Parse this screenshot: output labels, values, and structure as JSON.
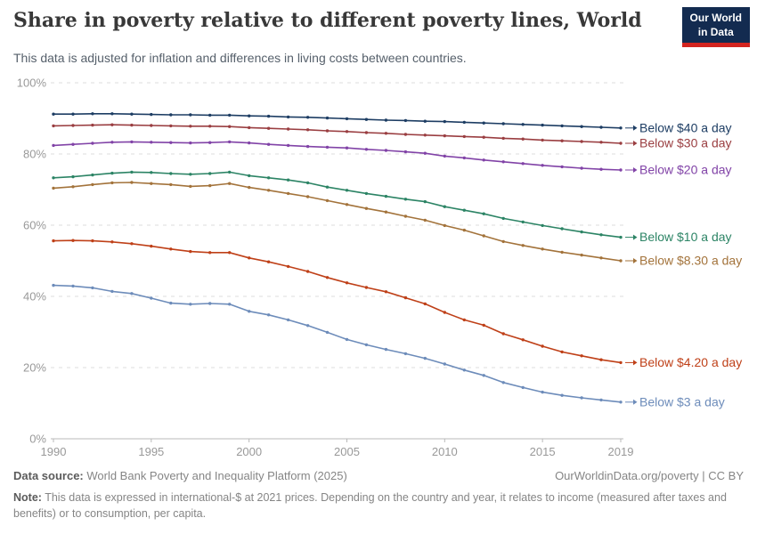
{
  "header": {
    "title": "Share in poverty relative to different poverty lines, World",
    "subtitle": "This data is adjusted for inflation and differences in living costs between countries.",
    "logo": {
      "line1": "Our World",
      "line2": "in Data",
      "bg_color": "#132b50",
      "accent_color": "#d3241f"
    }
  },
  "chart_data": {
    "type": "line",
    "title": "Share in poverty relative to different poverty lines, World",
    "xlabel": "",
    "ylabel": "",
    "grid": "horizontal-dashed",
    "legend_position": "right-end-labels",
    "ylim": [
      0,
      100
    ],
    "x": [
      1990,
      1991,
      1992,
      1993,
      1994,
      1995,
      1996,
      1997,
      1998,
      1999,
      2000,
      2001,
      2002,
      2003,
      2004,
      2005,
      2006,
      2007,
      2008,
      2009,
      2010,
      2011,
      2012,
      2013,
      2014,
      2015,
      2016,
      2017,
      2018,
      2019
    ],
    "x_tick_labels": [
      "1990",
      "1995",
      "2000",
      "2005",
      "2010",
      "2015",
      "2019"
    ],
    "y_tick_labels": [
      "0%",
      "20%",
      "40%",
      "60%",
      "80%",
      "100%"
    ],
    "axis_color": "#b9b9b9",
    "gridline_color": "#dedede",
    "tick_label_color": "#999999",
    "series": [
      {
        "name": "Below $40 a day",
        "color": "#1d3d63",
        "values": [
          91.2,
          91.2,
          91.3,
          91.3,
          91.2,
          91.1,
          91.0,
          91.0,
          90.9,
          90.9,
          90.7,
          90.6,
          90.4,
          90.3,
          90.1,
          89.9,
          89.7,
          89.5,
          89.4,
          89.2,
          89.1,
          88.9,
          88.7,
          88.5,
          88.3,
          88.1,
          87.9,
          87.7,
          87.5,
          87.3
        ]
      },
      {
        "name": "Below $30 a day",
        "color": "#9a3e41",
        "values": [
          87.9,
          88.0,
          88.1,
          88.2,
          88.1,
          88.0,
          87.9,
          87.8,
          87.8,
          87.7,
          87.4,
          87.2,
          87.0,
          86.8,
          86.5,
          86.3,
          86.0,
          85.8,
          85.5,
          85.3,
          85.1,
          84.9,
          84.7,
          84.4,
          84.2,
          83.9,
          83.7,
          83.5,
          83.3,
          83.0
        ]
      },
      {
        "name": "Below $20 a day",
        "color": "#8143a7",
        "values": [
          82.4,
          82.7,
          83.0,
          83.3,
          83.4,
          83.3,
          83.2,
          83.1,
          83.2,
          83.4,
          83.1,
          82.7,
          82.4,
          82.1,
          81.9,
          81.7,
          81.3,
          81.0,
          80.6,
          80.2,
          79.4,
          78.9,
          78.3,
          77.8,
          77.3,
          76.8,
          76.4,
          76.0,
          75.7,
          75.5
        ]
      },
      {
        "name": "Below $10 a day",
        "color": "#2c8465",
        "values": [
          73.3,
          73.6,
          74.1,
          74.6,
          74.9,
          74.8,
          74.5,
          74.3,
          74.5,
          74.9,
          73.9,
          73.3,
          72.7,
          71.9,
          70.7,
          69.8,
          68.9,
          68.1,
          67.3,
          66.6,
          65.2,
          64.2,
          63.2,
          61.9,
          60.9,
          59.9,
          59.0,
          58.1,
          57.3,
          56.6
        ]
      },
      {
        "name": "Below $8.30 a day",
        "color": "#a3733b",
        "values": [
          70.4,
          70.8,
          71.4,
          71.9,
          72.0,
          71.7,
          71.4,
          70.9,
          71.1,
          71.7,
          70.6,
          69.8,
          68.9,
          68.0,
          66.9,
          65.8,
          64.7,
          63.7,
          62.5,
          61.4,
          59.9,
          58.6,
          57.0,
          55.4,
          54.3,
          53.3,
          52.4,
          51.6,
          50.8,
          50.0
        ]
      },
      {
        "name": "Below $4.20 a day",
        "color": "#bf4018",
        "values": [
          55.6,
          55.7,
          55.6,
          55.3,
          54.8,
          54.1,
          53.3,
          52.6,
          52.3,
          52.3,
          50.8,
          49.7,
          48.4,
          47.0,
          45.3,
          43.8,
          42.5,
          41.3,
          39.6,
          37.9,
          35.5,
          33.4,
          31.9,
          29.5,
          27.8,
          26.0,
          24.4,
          23.3,
          22.2,
          21.4
        ]
      },
      {
        "name": "Below $3 a day",
        "color": "#6d8cba",
        "values": [
          43.1,
          42.9,
          42.4,
          41.4,
          40.8,
          39.5,
          38.1,
          37.8,
          38.0,
          37.8,
          35.8,
          34.8,
          33.4,
          31.8,
          29.9,
          27.9,
          26.4,
          25.1,
          23.9,
          22.6,
          21.0,
          19.3,
          17.8,
          15.8,
          14.4,
          13.1,
          12.2,
          11.5,
          10.9,
          10.3
        ]
      }
    ]
  },
  "footer": {
    "source_label": "Data source:",
    "source_value": " World Bank Poverty and Inequality Platform (2025)",
    "credit": "OurWorldinData.org/poverty | CC BY",
    "note_label": "Note:",
    "note_value": " This data is expressed in international-$ at 2021 prices. Depending on the country and year, it relates to income (measured after taxes and benefits) or to consumption, per capita."
  }
}
